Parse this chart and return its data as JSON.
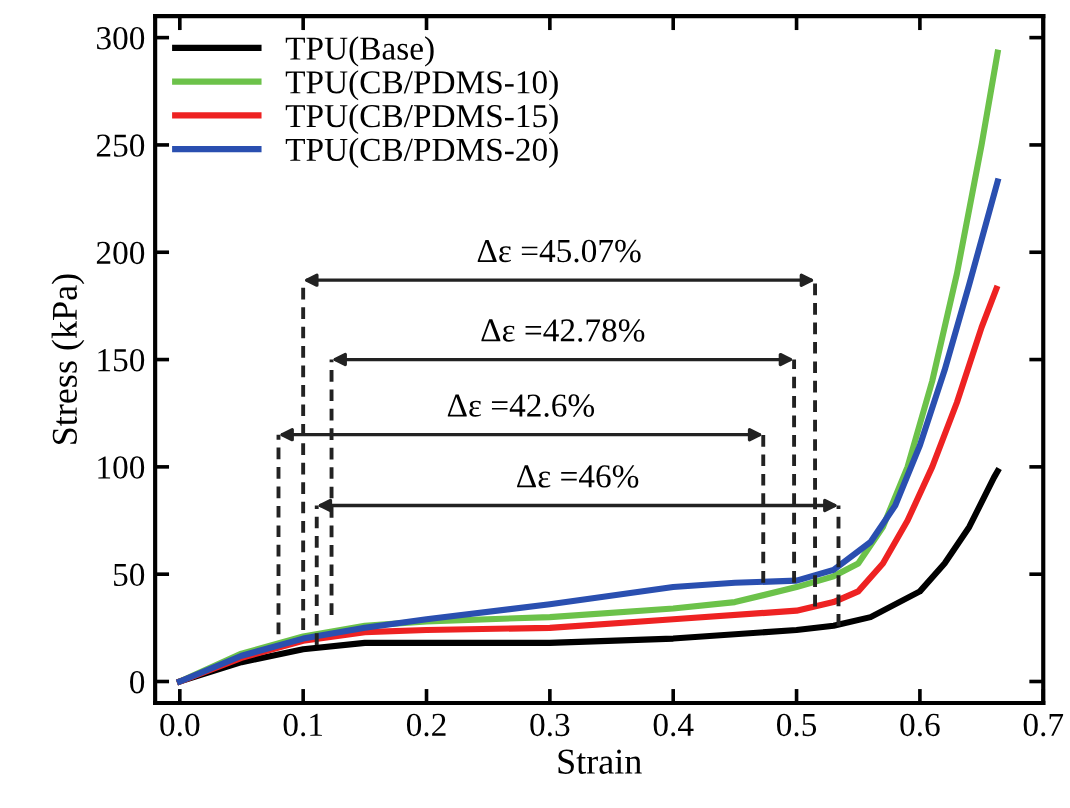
{
  "chart_data": {
    "type": "line",
    "xlabel": "Strain",
    "ylabel": "Stress (kPa)",
    "xlim": [
      -0.02,
      0.7
    ],
    "ylim": [
      -10,
      310
    ],
    "xticks": [
      {
        "value": 0,
        "label": "0.0"
      },
      0.1,
      0.2,
      0.3,
      0.4,
      0.5,
      0.6,
      0.7
    ],
    "yticks": [
      0,
      50,
      100,
      150,
      200,
      250,
      300
    ],
    "grid": false,
    "legend": "top left",
    "marker": "none",
    "line_style": "solid",
    "series": [
      {
        "name": "TPU(Base)",
        "color": "#000000",
        "x": [
          0,
          0.05,
          0.1,
          0.15,
          0.2,
          0.3,
          0.4,
          0.5,
          0.53,
          0.56,
          0.6,
          0.62,
          0.64,
          0.66,
          0.663
        ],
        "values": [
          0,
          9,
          15,
          18,
          18,
          18,
          20,
          24,
          26,
          30,
          42,
          55,
          72,
          95,
          98
        ]
      },
      {
        "name": "TPU(CB/PDMS-10)",
        "color": "#6cc24a",
        "x": [
          0,
          0.05,
          0.1,
          0.15,
          0.2,
          0.3,
          0.4,
          0.45,
          0.5,
          0.53,
          0.55,
          0.57,
          0.59,
          0.61,
          0.63,
          0.65,
          0.663
        ],
        "values": [
          0,
          13,
          21,
          26,
          28,
          30,
          34,
          37,
          44,
          49,
          55,
          72,
          100,
          140,
          190,
          250,
          293
        ]
      },
      {
        "name": "TPU(CB/PDMS-15)",
        "color": "#ee2222",
        "x": [
          0,
          0.05,
          0.1,
          0.15,
          0.2,
          0.3,
          0.4,
          0.5,
          0.53,
          0.55,
          0.57,
          0.59,
          0.61,
          0.63,
          0.65,
          0.662
        ],
        "values": [
          0,
          11,
          19,
          23,
          24,
          25,
          29,
          33,
          37,
          42,
          55,
          75,
          100,
          130,
          165,
          183
        ]
      },
      {
        "name": "TPU(CB/PDMS-20)",
        "color": "#2a4fb0",
        "x": [
          0,
          0.05,
          0.1,
          0.15,
          0.2,
          0.3,
          0.4,
          0.45,
          0.5,
          0.53,
          0.56,
          0.58,
          0.6,
          0.62,
          0.64,
          0.663
        ],
        "values": [
          0,
          12,
          20,
          25,
          29,
          36,
          44,
          46,
          47,
          52,
          65,
          82,
          110,
          145,
          185,
          233
        ]
      },
      {
        "color": "#222222",
        "line_style": "dashed",
        "x": [
          0.1,
          0.1
        ],
        "values": [
          24,
          187
        ]
      },
      {
        "color": "#222222",
        "line_style": "dashed",
        "x": [
          0.515,
          0.515
        ],
        "values": [
          35,
          187
        ]
      },
      {
        "color": "#222222",
        "line_style": "dashed",
        "x": [
          0.123,
          0.123
        ],
        "values": [
          31,
          150
        ]
      },
      {
        "color": "#222222",
        "line_style": "dashed",
        "x": [
          0.498,
          0.498
        ],
        "values": [
          46,
          150
        ]
      },
      {
        "color": "#222222",
        "line_style": "dashed",
        "x": [
          0.08,
          0.08
        ],
        "values": [
          22,
          115
        ]
      },
      {
        "color": "#222222",
        "line_style": "dashed",
        "x": [
          0.473,
          0.473
        ],
        "values": [
          46,
          115
        ]
      },
      {
        "color": "#222222",
        "line_style": "dashed",
        "x": [
          0.111,
          0.111
        ],
        "values": [
          17,
          82
        ]
      },
      {
        "color": "#222222",
        "line_style": "dashed",
        "x": [
          0.534,
          0.534
        ],
        "values": [
          26,
          82
        ]
      }
    ],
    "annotations": [
      "Δε =45.07%",
      "Δε =42.78%",
      "Δε =42.6%",
      "Δε =46%"
    ]
  }
}
